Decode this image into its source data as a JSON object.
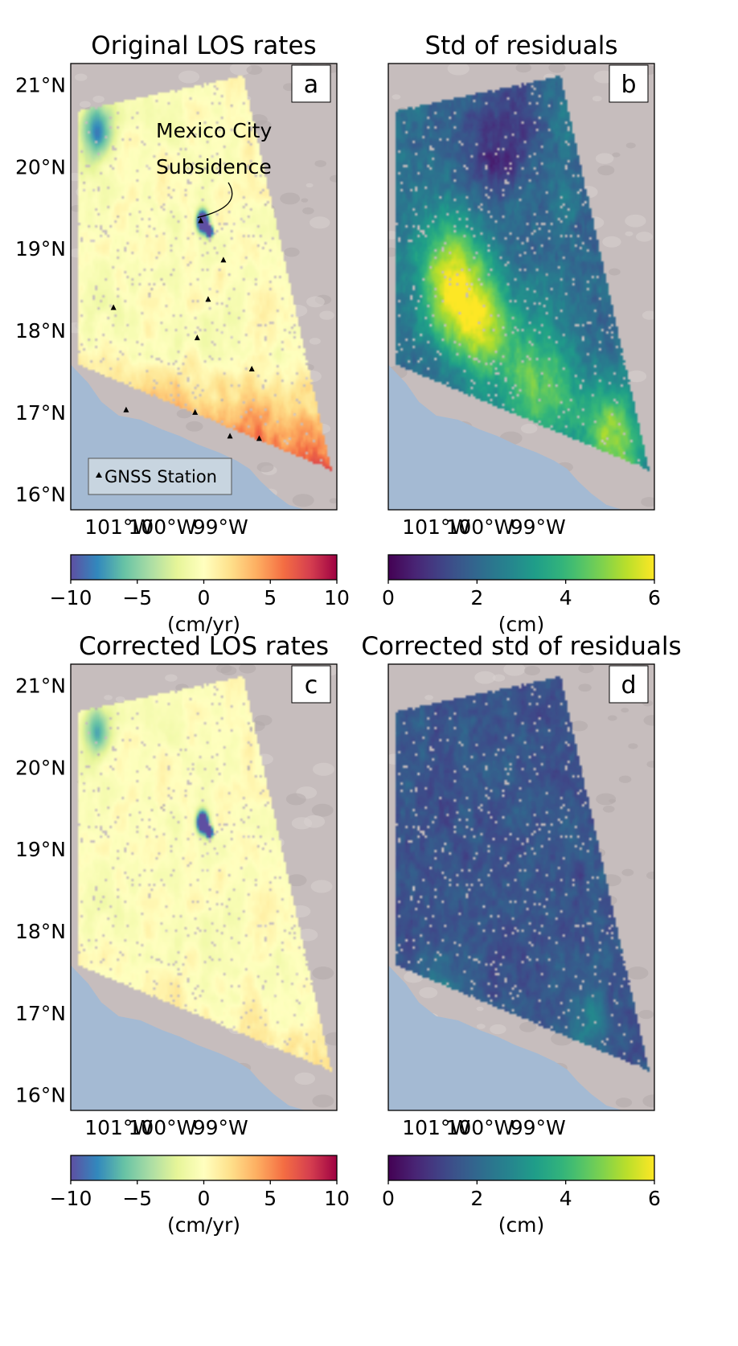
{
  "panels": [
    {
      "id": "a",
      "title": "Original LOS rates",
      "letter": "a",
      "field": "rate",
      "lat_ticks": [
        "21°N",
        "20°N",
        "19°N",
        "18°N",
        "17°N",
        "16°N"
      ],
      "lon_ticks": [
        "101°W",
        "100°W",
        "99°W"
      ],
      "annotation_lines": [
        "Mexico City",
        "Subsidence"
      ],
      "legend_label": "GNSS Station",
      "colorbar": {
        "ticks": [
          "−10",
          "−5",
          "0",
          "5",
          "10"
        ],
        "label": "(cm/yr)",
        "colormap": "spectral_r",
        "range": [
          -10,
          10
        ]
      }
    },
    {
      "id": "b",
      "title": "Std of residuals",
      "letter": "b",
      "field": "std_orig",
      "lat_ticks": [],
      "lon_ticks": [
        "101°W",
        "100°W",
        "99°W"
      ],
      "colorbar": {
        "ticks": [
          "0",
          "2",
          "4",
          "6"
        ],
        "label": "(cm)",
        "colormap": "viridis",
        "range": [
          0,
          6
        ]
      }
    },
    {
      "id": "c",
      "title": "Corrected LOS rates",
      "letter": "c",
      "field": "rate_corr",
      "lat_ticks": [
        "21°N",
        "20°N",
        "19°N",
        "18°N",
        "17°N",
        "16°N"
      ],
      "lon_ticks": [
        "101°W",
        "100°W",
        "99°W"
      ],
      "colorbar": {
        "ticks": [
          "−10",
          "−5",
          "0",
          "5",
          "10"
        ],
        "label": "(cm/yr)",
        "colormap": "spectral_r",
        "range": [
          -10,
          10
        ]
      }
    },
    {
      "id": "d",
      "title": "Corrected std of residuals",
      "letter": "d",
      "field": "std_corr",
      "lat_ticks": [],
      "lon_ticks": [
        "101°W",
        "100°W",
        "99°W"
      ],
      "colorbar": {
        "ticks": [
          "0",
          "2",
          "4",
          "6"
        ],
        "label": "(cm)",
        "colormap": "viridis",
        "range": [
          0,
          6
        ]
      }
    }
  ],
  "gnss_stations": [
    {
      "lon": -99.12,
      "lat": 19.33
    },
    {
      "lon": -98.6,
      "lat": 18.85
    },
    {
      "lon": -101.12,
      "lat": 18.27
    },
    {
      "lon": -98.95,
      "lat": 18.37
    },
    {
      "lon": -99.2,
      "lat": 17.9
    },
    {
      "lon": -97.95,
      "lat": 17.52
    },
    {
      "lon": -100.83,
      "lat": 17.02
    },
    {
      "lon": -99.25,
      "lat": 16.99
    },
    {
      "lon": -98.45,
      "lat": 16.7
    },
    {
      "lon": -97.78,
      "lat": 16.67
    }
  ],
  "colors": {
    "ocean": "#a4bad3",
    "terrain": "#c6bdbd",
    "colorbar_outline": "#000000"
  }
}
